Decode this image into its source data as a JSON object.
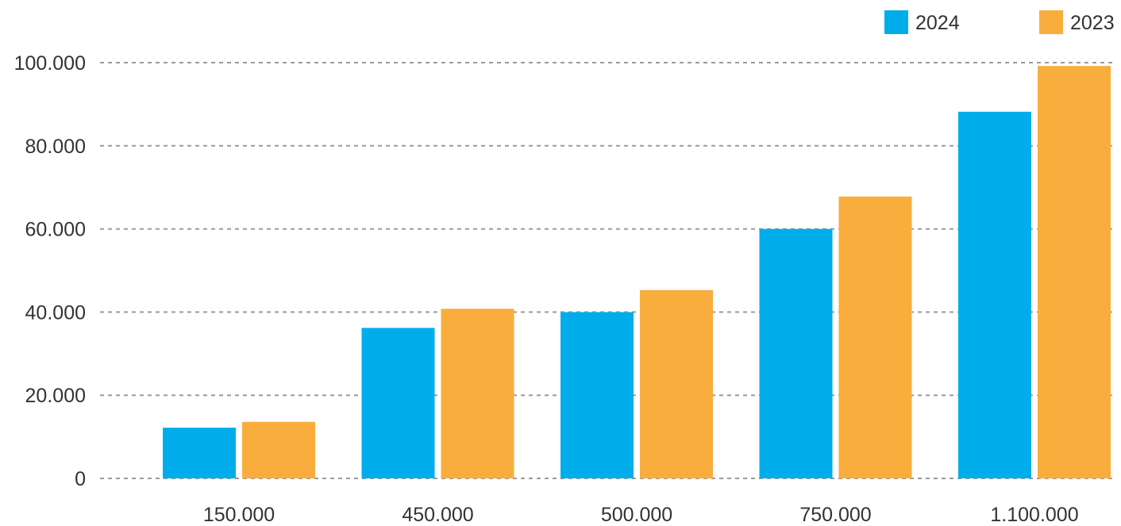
{
  "chart_data": {
    "type": "bar",
    "title": "",
    "xlabel": "",
    "ylabel": "",
    "categories": [
      "150.000",
      "450.000",
      "500.000",
      "750.000",
      "1.100.000"
    ],
    "series": [
      {
        "name": "2024",
        "values": [
          12200,
          36200,
          40000,
          60000,
          88200
        ]
      },
      {
        "name": "2023",
        "values": [
          13600,
          40800,
          45300,
          67800,
          99200
        ]
      }
    ],
    "ylim": [
      0,
      100000
    ],
    "yticks": [
      0,
      20000,
      40000,
      60000,
      80000,
      100000
    ],
    "ytick_labels": [
      "0",
      "20.000",
      "40.000",
      "60.000",
      "80.000",
      "100.000"
    ],
    "grid": true,
    "legend_position": "top-right",
    "colors": {
      "2024": "#00adeb",
      "2023": "#f9ad3d"
    }
  }
}
